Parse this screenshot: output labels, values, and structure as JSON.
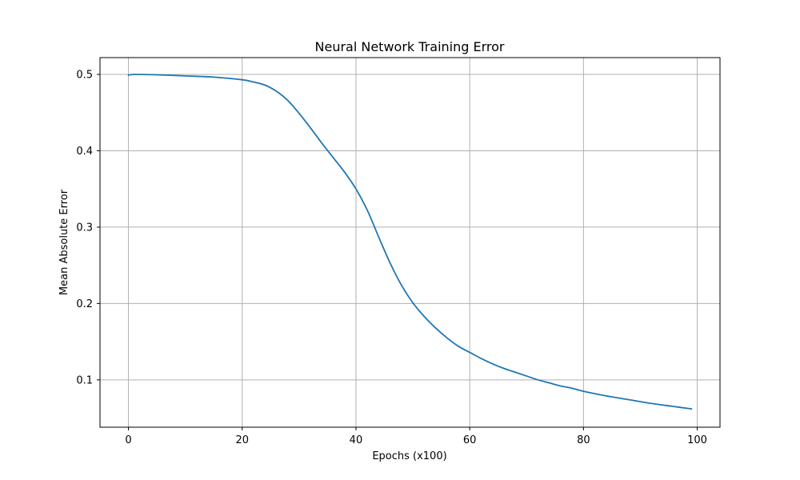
{
  "chart_data": {
    "type": "line",
    "title": "Neural Network Training Error",
    "xlabel": "Epochs (x100)",
    "ylabel": "Mean Absolute Error",
    "xlim": [
      -5,
      104
    ],
    "ylim": [
      0.038,
      0.522
    ],
    "xticks": [
      0,
      20,
      40,
      60,
      80,
      100
    ],
    "xtick_labels": [
      "0",
      "20",
      "40",
      "60",
      "80",
      "100"
    ],
    "yticks": [
      0.1,
      0.2,
      0.3,
      0.4,
      0.5
    ],
    "ytick_labels": [
      "0.1",
      "0.2",
      "0.3",
      "0.4",
      "0.5"
    ],
    "grid": true,
    "series": [
      {
        "color": "#1f77b4",
        "x": [
          0,
          1,
          5,
          10,
          15,
          20,
          22,
          24,
          26,
          28,
          30,
          32,
          34,
          36,
          38,
          40,
          42,
          44,
          46,
          48,
          50,
          52,
          54,
          56,
          58,
          60,
          62,
          64,
          66,
          68,
          70,
          72,
          74,
          76,
          78,
          80,
          84,
          88,
          92,
          96,
          99
        ],
        "y": [
          0.499,
          0.5,
          0.4995,
          0.498,
          0.4965,
          0.493,
          0.49,
          0.486,
          0.478,
          0.466,
          0.449,
          0.43,
          0.41,
          0.391,
          0.372,
          0.35,
          0.322,
          0.287,
          0.253,
          0.224,
          0.201,
          0.183,
          0.168,
          0.155,
          0.144,
          0.136,
          0.128,
          0.121,
          0.115,
          0.11,
          0.105,
          0.1,
          0.096,
          0.092,
          0.089,
          0.085,
          0.079,
          0.074,
          0.069,
          0.065,
          0.062
        ]
      }
    ]
  }
}
